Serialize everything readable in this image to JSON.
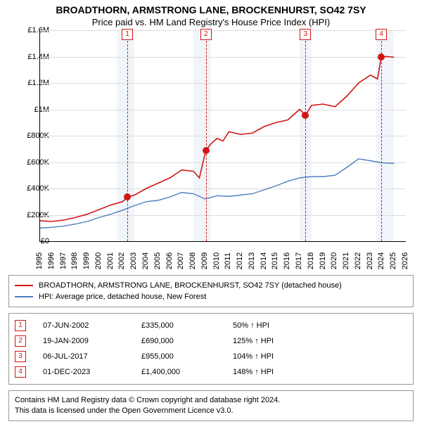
{
  "title": "BROADTHORN, ARMSTRONG LANE, BROCKENHURST, SO42 7SY",
  "subtitle": "Price paid vs. HM Land Registry's House Price Index (HPI)",
  "chart": {
    "type": "line",
    "background_color": "#ffffff",
    "grid_color": "#dcdcdc",
    "xlim": [
      1995,
      2026
    ],
    "ylim": [
      0,
      1600000
    ],
    "ytick_step": 200000,
    "yticks": [
      "£0",
      "£200K",
      "£400K",
      "£600K",
      "£800K",
      "£1M",
      "£1.2M",
      "£1.4M",
      "£1.6M"
    ],
    "xticks": [
      1995,
      1996,
      1997,
      1998,
      1999,
      2000,
      2001,
      2002,
      2003,
      2004,
      2005,
      2006,
      2007,
      2008,
      2009,
      2010,
      2011,
      2012,
      2013,
      2014,
      2015,
      2016,
      2017,
      2018,
      2019,
      2020,
      2021,
      2022,
      2023,
      2024,
      2025,
      2026
    ],
    "shade_bands": [
      {
        "from": 2001.5,
        "to": 2003.0
      },
      {
        "from": 2008.0,
        "to": 2009.5
      },
      {
        "from": 2017.0,
        "to": 2018.0
      },
      {
        "from": 2023.5,
        "to": 2025.0
      }
    ],
    "series": [
      {
        "name": "property",
        "color": "#d01515",
        "width": 1.6,
        "points": [
          [
            1995,
            155000
          ],
          [
            1996,
            150000
          ],
          [
            1997,
            160000
          ],
          [
            1998,
            180000
          ],
          [
            1999,
            205000
          ],
          [
            2000,
            240000
          ],
          [
            2001,
            275000
          ],
          [
            2002,
            300000
          ],
          [
            2002.4,
            335000
          ],
          [
            2003,
            350000
          ],
          [
            2004,
            400000
          ],
          [
            2005,
            440000
          ],
          [
            2006,
            480000
          ],
          [
            2007,
            540000
          ],
          [
            2008,
            530000
          ],
          [
            2008.5,
            480000
          ],
          [
            2009.05,
            690000
          ],
          [
            2009.5,
            740000
          ],
          [
            2010,
            780000
          ],
          [
            2010.5,
            760000
          ],
          [
            2011,
            830000
          ],
          [
            2012,
            810000
          ],
          [
            2013,
            820000
          ],
          [
            2014,
            870000
          ],
          [
            2015,
            900000
          ],
          [
            2016,
            920000
          ],
          [
            2017,
            1000000
          ],
          [
            2017.5,
            955000
          ],
          [
            2018,
            1030000
          ],
          [
            2019,
            1040000
          ],
          [
            2020,
            1020000
          ],
          [
            2021,
            1100000
          ],
          [
            2022,
            1200000
          ],
          [
            2023,
            1260000
          ],
          [
            2023.6,
            1230000
          ],
          [
            2023.92,
            1400000
          ],
          [
            2024.5,
            1400000
          ],
          [
            2025,
            1395000
          ]
        ]
      },
      {
        "name": "hpi",
        "color": "#4e7ec2",
        "width": 1.4,
        "points": [
          [
            1995,
            100000
          ],
          [
            1996,
            105000
          ],
          [
            1997,
            115000
          ],
          [
            1998,
            130000
          ],
          [
            1999,
            150000
          ],
          [
            2000,
            180000
          ],
          [
            2001,
            205000
          ],
          [
            2002,
            235000
          ],
          [
            2003,
            270000
          ],
          [
            2004,
            300000
          ],
          [
            2005,
            310000
          ],
          [
            2006,
            335000
          ],
          [
            2007,
            370000
          ],
          [
            2008,
            360000
          ],
          [
            2009,
            320000
          ],
          [
            2010,
            345000
          ],
          [
            2011,
            340000
          ],
          [
            2012,
            350000
          ],
          [
            2013,
            360000
          ],
          [
            2014,
            390000
          ],
          [
            2015,
            420000
          ],
          [
            2016,
            455000
          ],
          [
            2017,
            480000
          ],
          [
            2018,
            490000
          ],
          [
            2019,
            490000
          ],
          [
            2020,
            500000
          ],
          [
            2021,
            560000
          ],
          [
            2022,
            625000
          ],
          [
            2023,
            610000
          ],
          [
            2024,
            595000
          ],
          [
            2025,
            590000
          ]
        ]
      }
    ],
    "markers": [
      {
        "n": "1",
        "x": 2002.4,
        "y": 335000
      },
      {
        "n": "2",
        "x": 2009.05,
        "y": 690000
      },
      {
        "n": "3",
        "x": 2017.5,
        "y": 955000
      },
      {
        "n": "4",
        "x": 2023.92,
        "y": 1400000
      }
    ]
  },
  "legend": [
    {
      "color": "#d01515",
      "label": "BROADTHORN, ARMSTRONG LANE, BROCKENHURST, SO42 7SY (detached house)"
    },
    {
      "color": "#4e7ec2",
      "label": "HPI: Average price, detached house, New Forest"
    }
  ],
  "events": [
    {
      "n": "1",
      "date": "07-JUN-2002",
      "price": "£335,000",
      "pct": "50% ↑ HPI"
    },
    {
      "n": "2",
      "date": "19-JAN-2009",
      "price": "£690,000",
      "pct": "125% ↑ HPI"
    },
    {
      "n": "3",
      "date": "06-JUL-2017",
      "price": "£955,000",
      "pct": "104% ↑ HPI"
    },
    {
      "n": "4",
      "date": "01-DEC-2023",
      "price": "£1,400,000",
      "pct": "148% ↑ HPI"
    }
  ],
  "footer_lines": [
    "Contains HM Land Registry data © Crown copyright and database right 2024.",
    "This data is licensed under the Open Government Licence v3.0."
  ]
}
